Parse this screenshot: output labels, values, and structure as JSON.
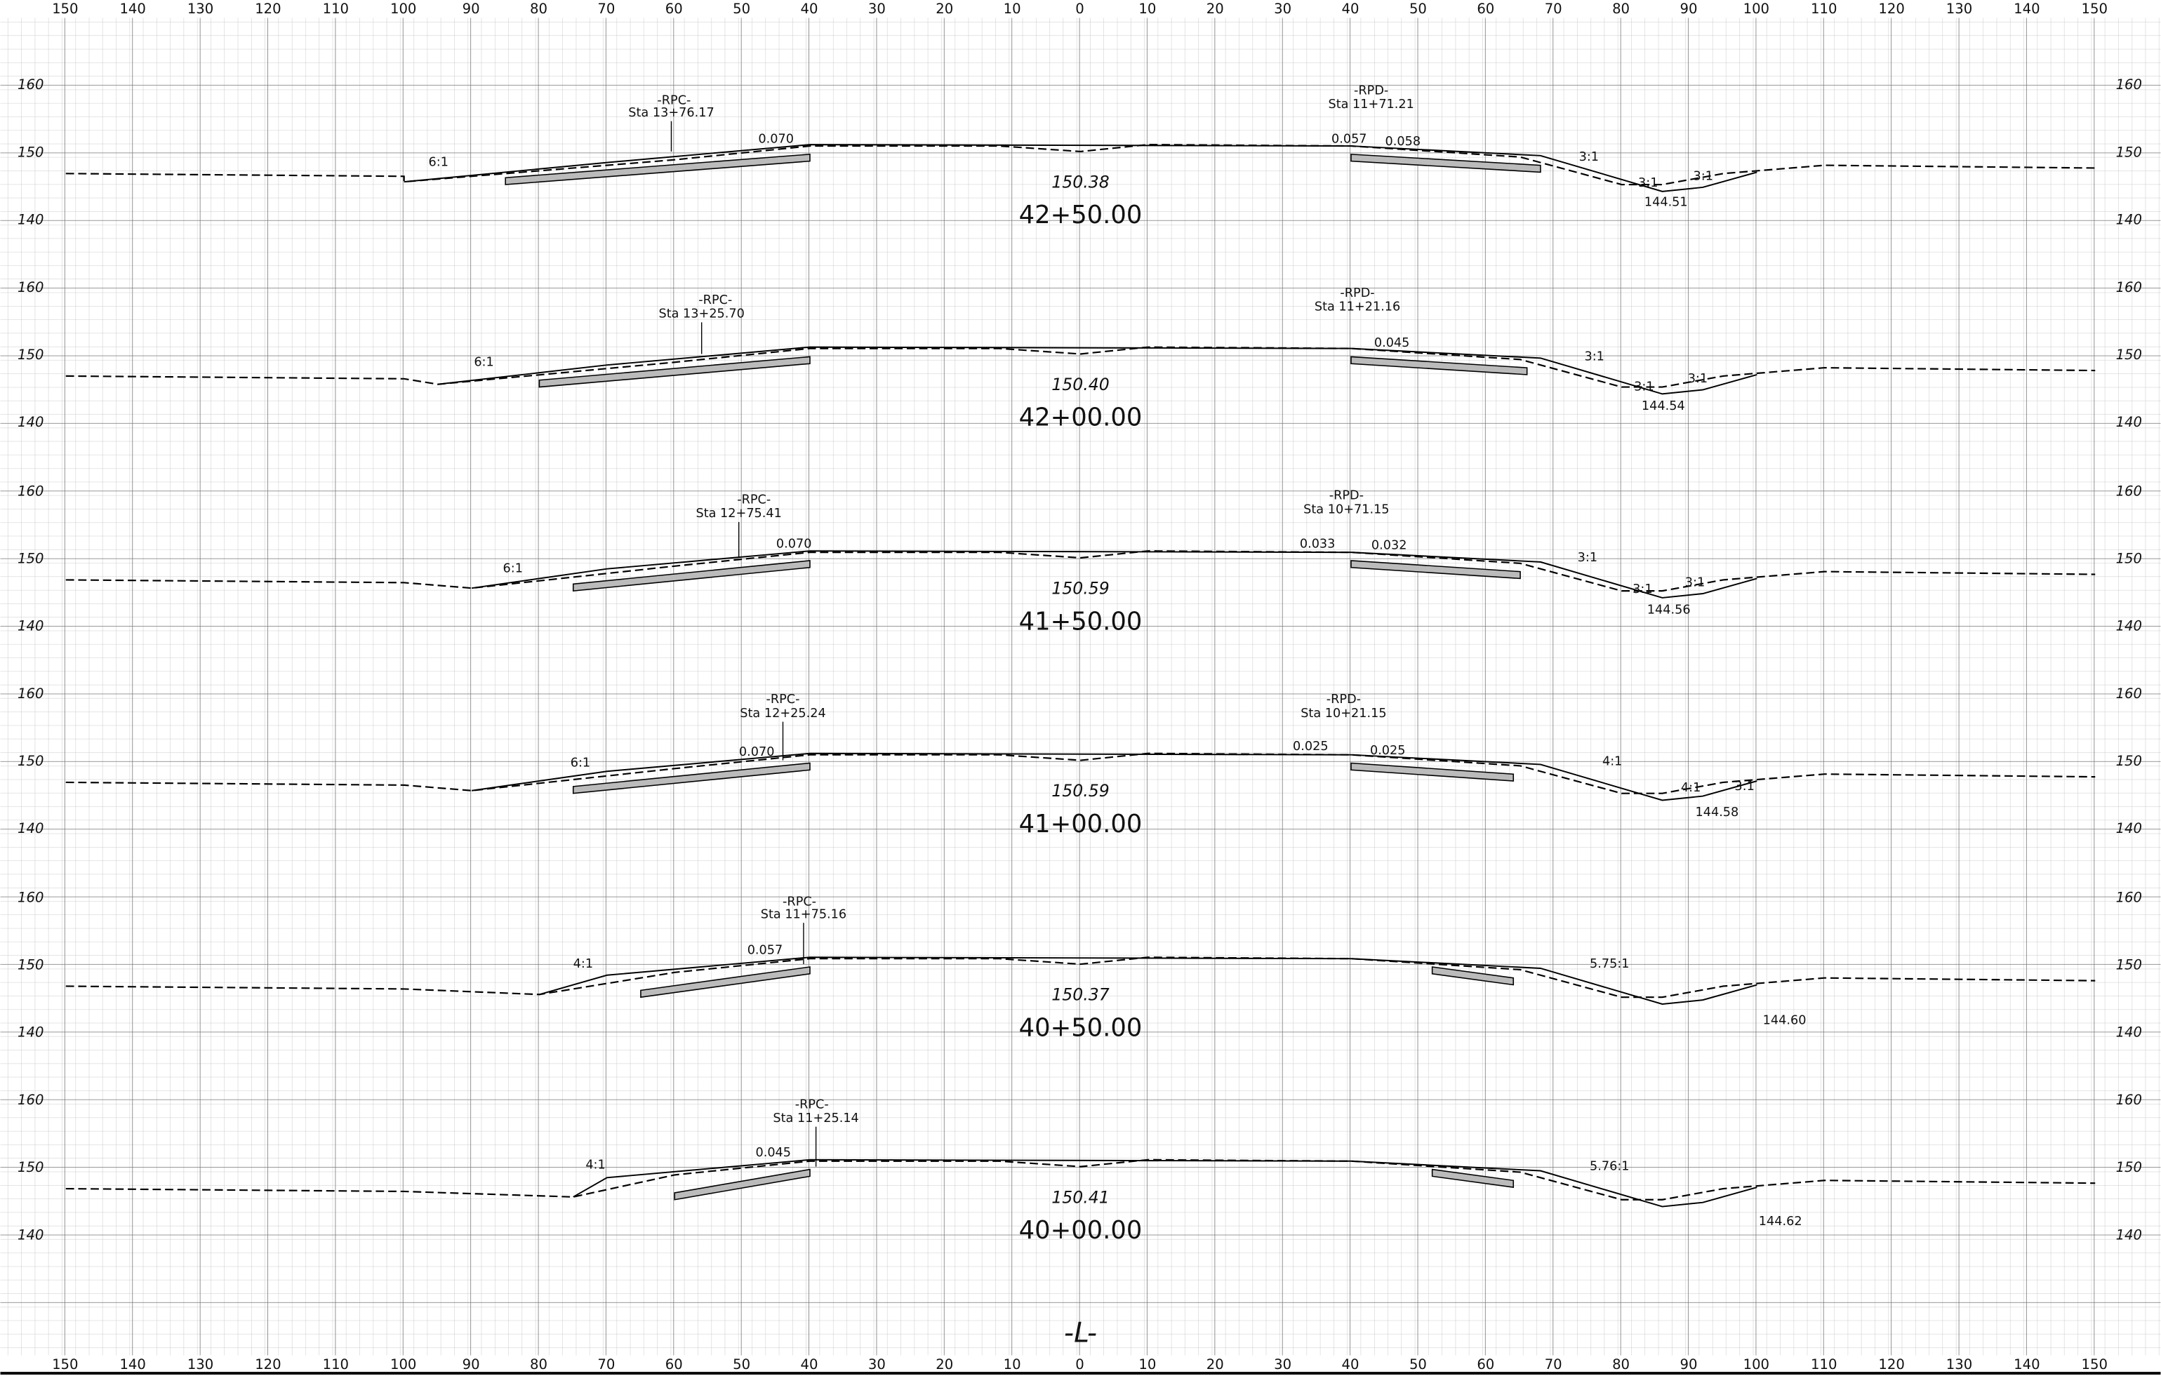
{
  "offset_scale": [
    "150",
    "140",
    "130",
    "120",
    "110",
    "100",
    "90",
    "80",
    "70",
    "60",
    "50",
    "40",
    "30",
    "20",
    "10",
    "0",
    "10",
    "20",
    "30",
    "40",
    "50",
    "60",
    "70",
    "80",
    "90",
    "100",
    "110",
    "120",
    "130",
    "140",
    "150"
  ],
  "elevation_scale": [
    "160",
    "150",
    "140"
  ],
  "sections": [
    {
      "elevation": "150.38",
      "station": "42+50.00",
      "labels": [
        "-RPC-",
        "Sta 13+76.17",
        "6:1",
        "0.070",
        "-RPD-",
        "Sta 11+71.21",
        "0.057",
        "0.058",
        "3:1",
        "3:1",
        "3:1",
        "144.51"
      ]
    },
    {
      "elevation": "150.40",
      "station": "42+00.00",
      "labels": [
        "-RPC-",
        "Sta 13+25.70",
        "6:1",
        "-RPD-",
        "Sta 11+21.16",
        "0.045",
        "3:1",
        "3:1",
        "3:1",
        "144.54"
      ]
    },
    {
      "elevation": "150.59",
      "station": "41+50.00",
      "labels": [
        "-RPC-",
        "Sta 12+75.41",
        "6:1",
        "0.070",
        "-RPD-",
        "Sta 10+71.15",
        "0.033",
        "0.032",
        "3:1",
        "3:1",
        "3:1",
        "144.56"
      ]
    },
    {
      "elevation": "150.59",
      "station": "41+00.00",
      "labels": [
        "-RPC-",
        "Sta 12+25.24",
        "6:1",
        "0.070",
        "-RPD-",
        "Sta 10+21.15",
        "0.025",
        "0.025",
        "4:1",
        "4:1",
        "3:1",
        "144.58"
      ]
    },
    {
      "elevation": "150.37",
      "station": "40+50.00",
      "labels": [
        "-RPC-",
        "Sta 11+75.16",
        "4:1",
        "0.057",
        "5.75:1",
        "144.60"
      ]
    },
    {
      "elevation": "150.41",
      "station": "40+00.00",
      "labels": [
        "-RPC-",
        "Sta 11+25.14",
        "4:1",
        "0.045",
        "5.76:1",
        "144.62"
      ]
    }
  ],
  "baseline_label": "-L-"
}
